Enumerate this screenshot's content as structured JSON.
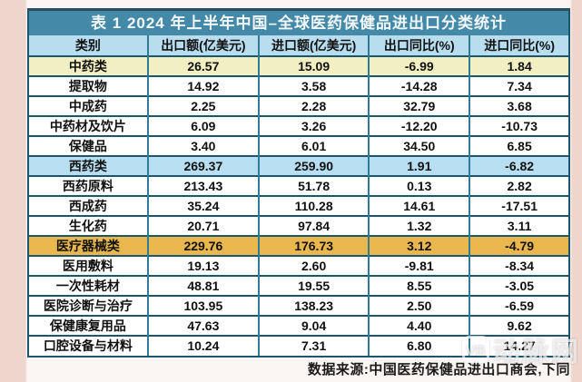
{
  "page": {
    "watermark_logo": "VB",
    "watermark_text": "动脉网"
  },
  "colors": {
    "title_bar_bg": "#4589a9",
    "header_bg": "#b7ddef",
    "row_highlight_yellow": "#f2efc2",
    "row_highlight_blue": "#b7dff1",
    "row_highlight_orange": "#e9b74d",
    "table_border": "#1b566f",
    "page_margin_pink": "#eed6cc"
  },
  "chart_data": {
    "type": "table",
    "title": "表 1  2024 年上半年中国–全球医药保健品进出口分类统计",
    "columns": [
      "类别",
      "出口额(亿美元)",
      "进口额(亿美元)",
      "出口同比(%)",
      "进口同比(%)"
    ],
    "rows": [
      {
        "cells": [
          "中药类",
          "26.57",
          "15.09",
          "-6.99",
          "1.84"
        ],
        "highlight": "yellow"
      },
      {
        "cells": [
          "提取物",
          "14.92",
          "3.58",
          "-14.28",
          "7.34"
        ],
        "highlight": "none"
      },
      {
        "cells": [
          "中成药",
          "2.25",
          "2.28",
          "32.79",
          "3.68"
        ],
        "highlight": "none"
      },
      {
        "cells": [
          "中药材及饮片",
          "6.09",
          "3.26",
          "-12.20",
          "-10.73"
        ],
        "highlight": "none"
      },
      {
        "cells": [
          "保健品",
          "3.40",
          "6.01",
          "34.50",
          "6.85"
        ],
        "highlight": "none"
      },
      {
        "cells": [
          "西药类",
          "269.37",
          "259.90",
          "1.91",
          "-6.82"
        ],
        "highlight": "blue"
      },
      {
        "cells": [
          "西药原料",
          "213.43",
          "51.78",
          "0.13",
          "2.82"
        ],
        "highlight": "none"
      },
      {
        "cells": [
          "西成药",
          "35.24",
          "110.28",
          "14.61",
          "-17.51"
        ],
        "highlight": "none"
      },
      {
        "cells": [
          "生化药",
          "20.71",
          "97.84",
          "1.32",
          "3.11"
        ],
        "highlight": "none"
      },
      {
        "cells": [
          "医疗器械类",
          "229.76",
          "176.73",
          "3.12",
          "-4.79"
        ],
        "highlight": "orange"
      },
      {
        "cells": [
          "医用敷料",
          "19.13",
          "2.60",
          "-9.81",
          "-8.34"
        ],
        "highlight": "none"
      },
      {
        "cells": [
          "一次性耗材",
          "48.81",
          "19.55",
          "8.55",
          "-3.05"
        ],
        "highlight": "none"
      },
      {
        "cells": [
          "医院诊断与治疗",
          "103.95",
          "138.23",
          "2.50",
          "-6.59"
        ],
        "highlight": "none"
      },
      {
        "cells": [
          "保健康复用品",
          "47.63",
          "9.04",
          "4.40",
          "9.62"
        ],
        "highlight": "none"
      },
      {
        "cells": [
          "口腔设备与材料",
          "10.24",
          "7.31",
          "6.80",
          "14.27"
        ],
        "highlight": "none"
      }
    ],
    "source_note": "数据来源:中国医药保健品进出口商会,下同",
    "layout": {
      "grid": true,
      "header_row": true,
      "title_position": "top-center"
    }
  }
}
